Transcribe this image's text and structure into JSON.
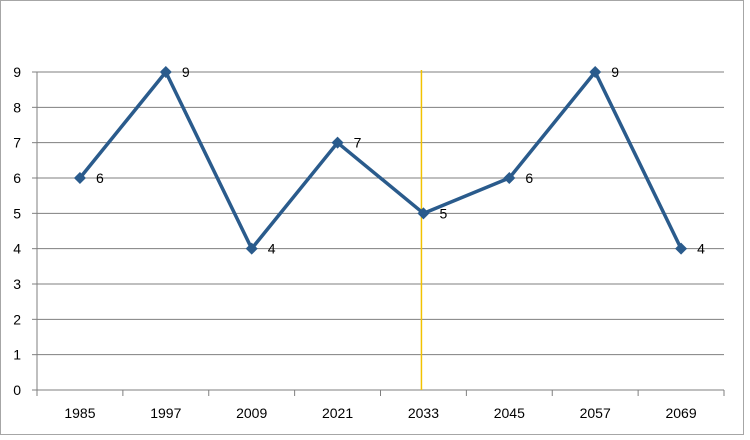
{
  "chart_data": {
    "type": "line",
    "title": "",
    "xlabel": "",
    "ylabel": "",
    "categories": [
      "1985",
      "1997",
      "2009",
      "2021",
      "2033",
      "2045",
      "2057",
      "2069"
    ],
    "series": [
      {
        "values": [
          6,
          9,
          4,
          7,
          5,
          6,
          9,
          4
        ]
      }
    ],
    "ylim": [
      0,
      9
    ],
    "yticks": [
      "0",
      "1",
      "2",
      "3",
      "4",
      "5",
      "6",
      "7",
      "8",
      "9"
    ],
    "data_labels": [
      "6",
      "9",
      "4",
      "7",
      "5",
      "6",
      "9",
      "4"
    ],
    "grid": true,
    "legend": "none",
    "marker": "diamond",
    "reference_line": {
      "orientation": "vertical",
      "at_category": "2033"
    },
    "colors": {
      "series": "#2A5B8C",
      "grid": "#7F7F7F",
      "reference_line": "#F2C200",
      "frame": "#A6A6A6"
    }
  }
}
